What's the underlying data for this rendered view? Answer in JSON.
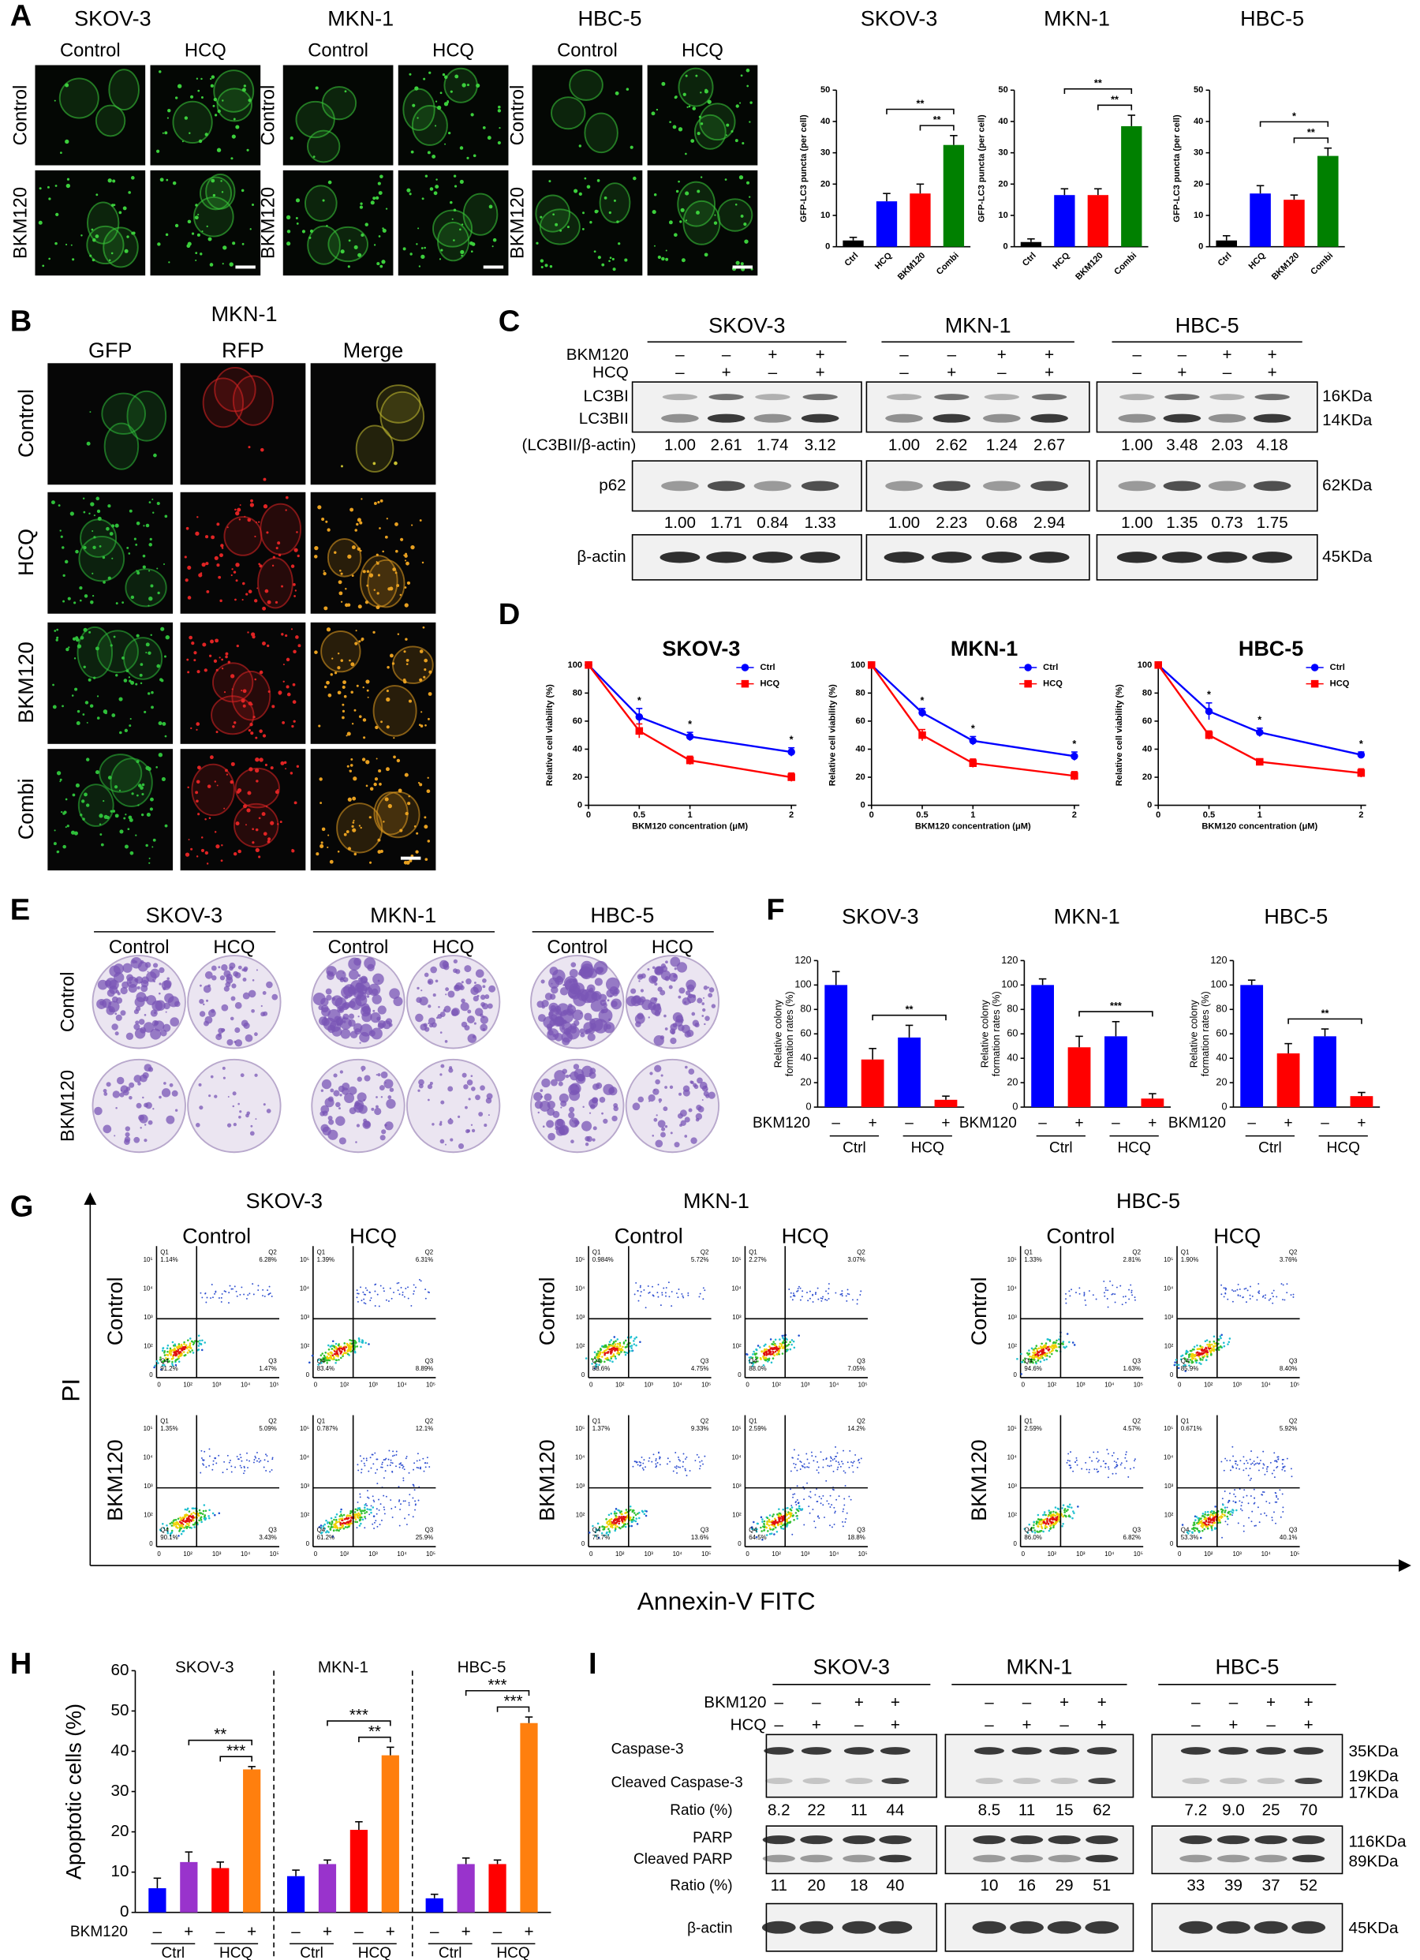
{
  "cell_lines": [
    "SKOV-3",
    "MKN-1",
    "HBC-5"
  ],
  "panels": {
    "A": {
      "label": "A",
      "columns": [
        "Control",
        "HCQ"
      ],
      "rows": [
        "Control",
        "BKM120"
      ]
    },
    "B": {
      "label": "B",
      "line": "MKN-1",
      "columns": [
        "GFP",
        "RFP",
        "Merge"
      ],
      "rows": [
        "Control",
        "HCQ",
        "BKM120",
        "Combi"
      ]
    },
    "C": {
      "label": "C",
      "rows": [
        "BKM120",
        "HCQ"
      ],
      "bkm120": [
        "–",
        "–",
        "+",
        "+"
      ],
      "hcq": [
        "–",
        "+",
        "–",
        "+"
      ],
      "lc3": [
        "LC3BI",
        "LC3BII"
      ],
      "lc3_ratio_label": "(LC3BII/β-actin)",
      "lc3_ratios": [
        [
          "1.00",
          "2.61",
          "1.74",
          "3.12"
        ],
        [
          "1.00",
          "2.62",
          "1.24",
          "2.67"
        ],
        [
          "1.00",
          "3.48",
          "2.03",
          "4.18"
        ]
      ],
      "p62": "p62",
      "p62_ratios": [
        [
          "1.00",
          "1.71",
          "0.84",
          "1.33"
        ],
        [
          "1.00",
          "2.23",
          "0.68",
          "2.94"
        ],
        [
          "1.00",
          "1.35",
          "0.73",
          "1.75"
        ]
      ],
      "actin": "β-actin",
      "sizes": [
        "16KDa",
        "14KDa",
        "62KDa",
        "45KDa"
      ]
    },
    "D": {
      "label": "D"
    },
    "E": {
      "label": "E",
      "columns": [
        "Control",
        "HCQ"
      ],
      "rows": [
        "Control",
        "BKM120"
      ]
    },
    "F": {
      "label": "F"
    },
    "G": {
      "label": "G",
      "y_axis": "PI",
      "x_axis": "Annexin-V FITC",
      "columns": [
        "Control",
        "HCQ"
      ],
      "rows": [
        "Control",
        "BKM120"
      ],
      "quadrant_names": [
        "Q1",
        "Q2",
        "Q3",
        "Q4"
      ],
      "axis_ticks": [
        "0",
        "10²",
        "10³",
        "10⁴",
        "10⁵"
      ],
      "plots": [
        [
          [
            "1.14%",
            "6.28%",
            "1.47%",
            "91.2%"
          ],
          [
            "1.39%",
            "6.31%",
            "8.89%",
            "83.4%"
          ],
          [
            "1.35%",
            "5.09%",
            "3.43%",
            "90.1%"
          ],
          [
            "0.787%",
            "12.1%",
            "25.9%",
            "61.2%"
          ]
        ],
        [
          [
            "0.984%",
            "5.72%",
            "4.75%",
            "88.6%"
          ],
          [
            "2.27%",
            "3.07%",
            "7.05%",
            "88.0%"
          ],
          [
            "1.37%",
            "9.33%",
            "13.6%",
            "75.7%"
          ],
          [
            "2.59%",
            "14.2%",
            "18.8%",
            "64.5%"
          ]
        ],
        [
          [
            "1.33%",
            "2.81%",
            "1.63%",
            "94.6%"
          ],
          [
            "1.90%",
            "3.76%",
            "8.40%",
            "85.9%"
          ],
          [
            "2.59%",
            "4.57%",
            "6.82%",
            "86.0%"
          ],
          [
            "0.671%",
            "5.92%",
            "40.1%",
            "53.3%"
          ]
        ]
      ]
    },
    "H": {
      "label": "H"
    },
    "I": {
      "label": "I",
      "rows": [
        "BKM120",
        "HCQ"
      ],
      "bkm120": [
        "–",
        "–",
        "+",
        "+"
      ],
      "hcq": [
        "–",
        "+",
        "–",
        "+"
      ],
      "casp": [
        "Caspase-3",
        "Cleaved Caspase-3"
      ],
      "ratio_label": "Ratio (%)",
      "casp_ratios": [
        [
          "8.2",
          "22",
          "11",
          "44"
        ],
        [
          "8.5",
          "11",
          "15",
          "62"
        ],
        [
          "7.2",
          "9.0",
          "25",
          "70"
        ]
      ],
      "parp": [
        "PARP",
        "Cleaved PARP"
      ],
      "parp_ratios": [
        [
          "11",
          "20",
          "18",
          "40"
        ],
        [
          "10",
          "16",
          "29",
          "51"
        ],
        [
          "33",
          "39",
          "37",
          "52"
        ]
      ],
      "actin": "β-actin",
      "sizes": [
        "35KDa",
        "19KDa",
        "17KDa",
        "116KDa",
        "89KDa",
        "45KDa"
      ]
    }
  },
  "chart_data": [
    {
      "type": "bar",
      "title": "SKOV-3",
      "ylabel": "GFP-LC3 puncta (per cell)",
      "categories": [
        "Ctrl",
        "HCQ",
        "BKM120",
        "Combi"
      ],
      "values": [
        2,
        14.5,
        17,
        32.5
      ],
      "errors": [
        1,
        2.5,
        3,
        3
      ],
      "colors": [
        "#000000",
        "#0000ff",
        "#ff0000",
        "#008000"
      ],
      "ylim": [
        0,
        50
      ],
      "yticks": [
        0,
        10,
        20,
        30,
        40,
        50
      ],
      "significance": [
        "**",
        "**"
      ]
    },
    {
      "type": "bar",
      "title": "MKN-1",
      "ylabel": "GFP-LC3 puncta (per cell)",
      "categories": [
        "Ctrl",
        "HCQ",
        "BKM120",
        "Combi"
      ],
      "values": [
        1.5,
        16.5,
        16.5,
        38.5
      ],
      "errors": [
        1,
        2,
        2,
        3.5
      ],
      "colors": [
        "#000000",
        "#0000ff",
        "#ff0000",
        "#008000"
      ],
      "ylim": [
        0,
        50
      ],
      "yticks": [
        0,
        10,
        20,
        30,
        40,
        50
      ],
      "significance": [
        "**",
        "**"
      ]
    },
    {
      "type": "bar",
      "title": "HBC-5",
      "ylabel": "GFP-LC3 puncta (per cell)",
      "categories": [
        "Ctrl",
        "HCQ",
        "BKM120",
        "Combi"
      ],
      "values": [
        2,
        17,
        15,
        29
      ],
      "errors": [
        1.5,
        2.5,
        1.5,
        2.5
      ],
      "colors": [
        "#000000",
        "#0000ff",
        "#ff0000",
        "#008000"
      ],
      "ylim": [
        0,
        50
      ],
      "yticks": [
        0,
        10,
        20,
        30,
        40,
        50
      ],
      "significance": [
        "*",
        "**"
      ]
    },
    {
      "type": "line",
      "title": "SKOV-3",
      "ylabel": "Relative cell viability (%)",
      "xlabel": "BKM120 concentration (μM)",
      "x": [
        0,
        0.5,
        1,
        2
      ],
      "xlim": [
        0,
        2
      ],
      "xticks": [
        0,
        0.5,
        1,
        2
      ],
      "ylim": [
        0,
        100
      ],
      "yticks": [
        0,
        20,
        40,
        60,
        80,
        100
      ],
      "series": [
        {
          "name": "Ctrl",
          "color": "#0000ff",
          "values": [
            100,
            63,
            49,
            38
          ],
          "errors": [
            2,
            6,
            3,
            3
          ]
        },
        {
          "name": "HCQ",
          "color": "#ff0000",
          "values": [
            100,
            53,
            32,
            20
          ],
          "errors": [
            2,
            5,
            3,
            3
          ]
        }
      ],
      "significance": [
        null,
        "*",
        "*",
        "*"
      ]
    },
    {
      "type": "line",
      "title": "MKN-1",
      "ylabel": "Relative cell viability (%)",
      "xlabel": "BKM120 concentration (μM)",
      "x": [
        0,
        0.5,
        1,
        2
      ],
      "xlim": [
        0,
        2
      ],
      "xticks": [
        0,
        0.5,
        1,
        2
      ],
      "ylim": [
        0,
        100
      ],
      "yticks": [
        0,
        20,
        40,
        60,
        80,
        100
      ],
      "series": [
        {
          "name": "Ctrl",
          "color": "#0000ff",
          "values": [
            100,
            66,
            46,
            35
          ],
          "errors": [
            2,
            3,
            3,
            3
          ]
        },
        {
          "name": "HCQ",
          "color": "#ff0000",
          "values": [
            100,
            50,
            30,
            21
          ],
          "errors": [
            2,
            4,
            3,
            3
          ]
        }
      ],
      "significance": [
        null,
        "*",
        "*",
        "*"
      ]
    },
    {
      "type": "line",
      "title": "HBC-5",
      "ylabel": "Relative cell viability (%)",
      "xlabel": "BKM120 concentration (μM)",
      "x": [
        0,
        0.5,
        1,
        2
      ],
      "xlim": [
        0,
        2
      ],
      "xticks": [
        0,
        0.5,
        1,
        2
      ],
      "ylim": [
        0,
        100
      ],
      "yticks": [
        0,
        20,
        40,
        60,
        80,
        100
      ],
      "series": [
        {
          "name": "Ctrl",
          "color": "#0000ff",
          "values": [
            100,
            67,
            52,
            36
          ],
          "errors": [
            2,
            6,
            3,
            2
          ]
        },
        {
          "name": "HCQ",
          "color": "#ff0000",
          "values": [
            100,
            50,
            31,
            23
          ],
          "errors": [
            2,
            3,
            2,
            3
          ]
        }
      ],
      "significance": [
        null,
        "*",
        "*",
        "*"
      ]
    },
    {
      "type": "bar",
      "title": "SKOV-3",
      "ylabel": [
        "Relative colony",
        "formation rates (%)"
      ],
      "x_row_label": "BKM120",
      "signs": [
        "–",
        "+",
        "–",
        "+"
      ],
      "groups": [
        "Ctrl",
        "HCQ"
      ],
      "values": [
        100,
        39,
        57,
        6
      ],
      "errors": [
        11,
        9,
        10,
        3
      ],
      "colors": [
        "#0000ff",
        "#ff0000",
        "#0000ff",
        "#ff0000"
      ],
      "ylim": [
        0,
        120
      ],
      "yticks": [
        0,
        20,
        40,
        60,
        80,
        100,
        120
      ],
      "significance": [
        "**"
      ]
    },
    {
      "type": "bar",
      "title": "MKN-1",
      "ylabel": [
        "Relative colony",
        "formation rates (%)"
      ],
      "x_row_label": "BKM120",
      "signs": [
        "–",
        "+",
        "–",
        "+"
      ],
      "groups": [
        "Ctrl",
        "HCQ"
      ],
      "values": [
        100,
        49,
        58,
        7
      ],
      "errors": [
        5,
        9,
        12,
        4
      ],
      "colors": [
        "#0000ff",
        "#ff0000",
        "#0000ff",
        "#ff0000"
      ],
      "ylim": [
        0,
        120
      ],
      "yticks": [
        0,
        20,
        40,
        60,
        80,
        100,
        120
      ],
      "significance": [
        "***"
      ]
    },
    {
      "type": "bar",
      "title": "HBC-5",
      "ylabel": [
        "Relative colony",
        "formation rates (%)"
      ],
      "x_row_label": "BKM120",
      "signs": [
        "–",
        "+",
        "–",
        "+"
      ],
      "groups": [
        "Ctrl",
        "HCQ"
      ],
      "values": [
        100,
        44,
        58,
        9
      ],
      "errors": [
        4,
        8,
        6,
        3
      ],
      "colors": [
        "#0000ff",
        "#ff0000",
        "#0000ff",
        "#ff0000"
      ],
      "ylim": [
        0,
        120
      ],
      "yticks": [
        0,
        20,
        40,
        60,
        80,
        100,
        120
      ],
      "significance": [
        "**"
      ]
    },
    {
      "type": "grouped-bar",
      "ylabel": "Apoptotic cells (%)",
      "ylim": [
        0,
        60
      ],
      "yticks": [
        0,
        10,
        20,
        30,
        40,
        50,
        60
      ],
      "colors": [
        "#0000ff",
        "#9933cc",
        "#ff0000",
        "#ff7f0e"
      ],
      "x_row_label": "BKM120",
      "signs": [
        "–",
        "+",
        "–",
        "+"
      ],
      "groups": [
        "Ctrl",
        "HCQ"
      ],
      "panels": [
        {
          "title": "SKOV-3",
          "values": [
            6,
            12.5,
            11,
            35.5
          ],
          "errors": [
            2.5,
            2.5,
            1.5,
            0.7
          ],
          "significance": [
            "**",
            "***"
          ]
        },
        {
          "title": "MKN-1",
          "values": [
            9,
            12,
            20.5,
            39
          ],
          "errors": [
            1.5,
            1,
            2,
            2
          ],
          "significance": [
            "***",
            "**"
          ]
        },
        {
          "title": "HBC-5",
          "values": [
            3.5,
            12,
            12,
            47
          ],
          "errors": [
            1,
            1.5,
            1,
            1.5
          ],
          "significance": [
            "***",
            "***"
          ]
        }
      ]
    }
  ]
}
